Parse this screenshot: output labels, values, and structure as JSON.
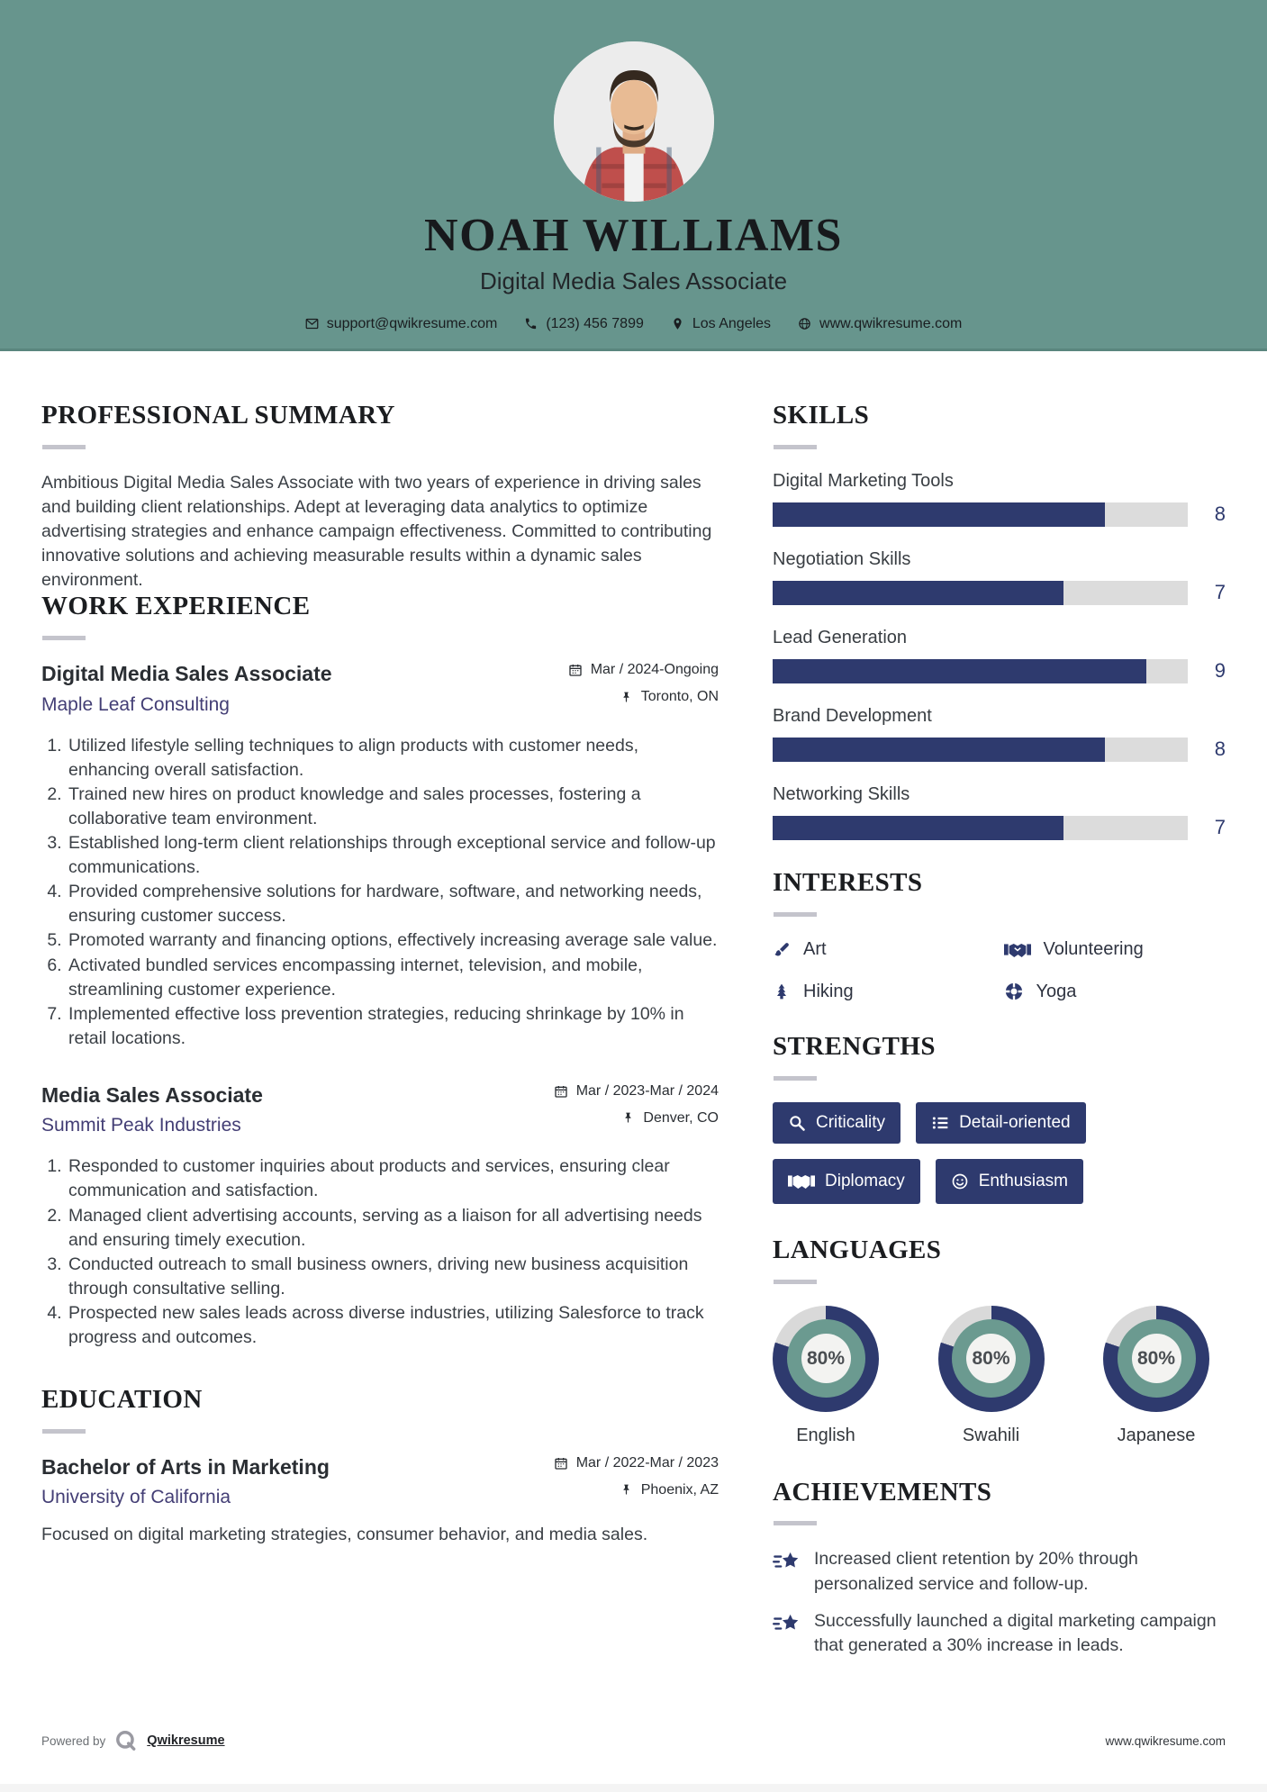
{
  "colors": {
    "header_teal": "#67958d",
    "navy": "#2e3a6e",
    "bar_track": "#dcdcdc",
    "company_purple": "#433e75",
    "donut_teal": "#6b9a90",
    "donut_gray": "#d9d9d9"
  },
  "header": {
    "name": "NOAH WILLIAMS",
    "title": "Digital Media Sales Associate",
    "contact": {
      "email": "support@qwikresume.com",
      "phone": "(123) 456 7899",
      "location": "Los Angeles",
      "website": "www.qwikresume.com"
    }
  },
  "summary": {
    "heading": "PROFESSIONAL SUMMARY",
    "text": "Ambitious Digital Media Sales Associate with two years of experience in driving sales and building client relationships. Adept at leveraging data analytics to optimize advertising strategies and enhance campaign effectiveness. Committed to contributing innovative solutions and achieving measurable results within a dynamic sales environment."
  },
  "work": {
    "heading": "WORK EXPERIENCE",
    "jobs": [
      {
        "title": "Digital Media Sales Associate",
        "company": "Maple Leaf Consulting",
        "date": "Mar / 2024-Ongoing",
        "location": "Toronto, ON",
        "bullets": [
          "Utilized lifestyle selling techniques to align products with customer needs, enhancing overall satisfaction.",
          "Trained new hires on product knowledge and sales processes, fostering a collaborative team environment.",
          "Established long-term client relationships through exceptional service and follow-up communications.",
          "Provided comprehensive solutions for hardware, software, and networking needs, ensuring customer success.",
          "Promoted warranty and financing options, effectively increasing average sale value.",
          "Activated bundled services encompassing internet, television, and mobile, streamlining customer experience.",
          "Implemented effective loss prevention strategies, reducing shrinkage by 10% in retail locations."
        ]
      },
      {
        "title": "Media Sales Associate",
        "company": "Summit Peak Industries",
        "date": "Mar / 2023-Mar / 2024",
        "location": "Denver, CO",
        "bullets": [
          "Responded to customer inquiries about products and services, ensuring clear communication and satisfaction.",
          "Managed client advertising accounts, serving as a liaison for all advertising needs and ensuring timely execution.",
          "Conducted outreach to small business owners, driving new business acquisition through consultative selling.",
          "Prospected new sales leads across diverse industries, utilizing Salesforce to track progress and outcomes."
        ]
      }
    ]
  },
  "education": {
    "heading": "EDUCATION",
    "degree": "Bachelor of Arts in Marketing",
    "school": "University of California",
    "date": "Mar / 2022-Mar / 2023",
    "location": "Phoenix, AZ",
    "description": "Focused on digital marketing strategies, consumer behavior, and media sales."
  },
  "skills": {
    "heading": "SKILLS",
    "max": 10,
    "items": [
      {
        "label": "Digital Marketing Tools",
        "value": 8
      },
      {
        "label": "Negotiation Skills",
        "value": 7
      },
      {
        "label": "Lead Generation",
        "value": 9
      },
      {
        "label": "Brand Development",
        "value": 8
      },
      {
        "label": "Networking Skills",
        "value": 7
      }
    ]
  },
  "interests": {
    "heading": "INTERESTS",
    "items": [
      {
        "label": "Art",
        "icon": "paintbrush-icon"
      },
      {
        "label": "Volunteering",
        "icon": "handshake-icon"
      },
      {
        "label": "Hiking",
        "icon": "pine-tree-icon"
      },
      {
        "label": "Yoga",
        "icon": "lifebuoy-icon"
      }
    ]
  },
  "strengths": {
    "heading": "STRENGTHS",
    "items": [
      {
        "label": "Criticality",
        "icon": "magnifier-icon"
      },
      {
        "label": "Detail-oriented",
        "icon": "list-icon"
      },
      {
        "label": "Diplomacy",
        "icon": "handshake-icon"
      },
      {
        "label": "Enthusiasm",
        "icon": "smiley-icon"
      }
    ]
  },
  "languages": {
    "heading": "LANGUAGES",
    "items": [
      {
        "label": "English",
        "percent": 80,
        "percent_label": "80%"
      },
      {
        "label": "Swahili",
        "percent": 80,
        "percent_label": "80%"
      },
      {
        "label": "Japanese",
        "percent": 80,
        "percent_label": "80%"
      }
    ]
  },
  "achievements": {
    "heading": "ACHIEVEMENTS",
    "items": [
      "Increased client retention by 20% through personalized service and follow-up.",
      "Successfully launched a digital marketing campaign that generated a 30% increase in leads."
    ]
  },
  "footer": {
    "powered_by": "Powered by",
    "brand": "Qwikresume",
    "website": "www.qwikresume.com"
  }
}
